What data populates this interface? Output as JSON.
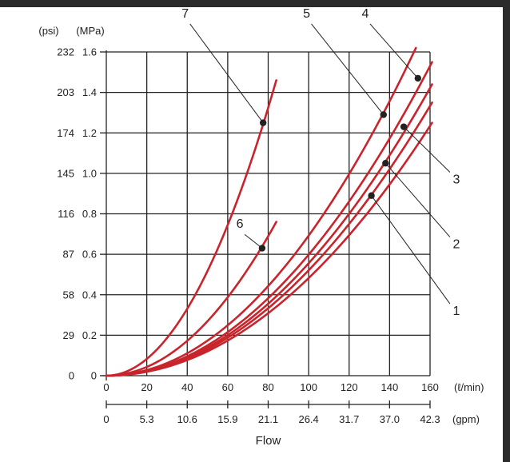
{
  "chart_data": {
    "type": "line",
    "xlabel": "Flow",
    "x_unit_primary": "(ℓ/min)",
    "x_unit_secondary": "(gpm)",
    "y_unit_primary": "(MPa)",
    "y_unit_secondary": "(psi)",
    "xlim": [
      0,
      160
    ],
    "ylim": [
      0,
      1.6
    ],
    "grid": true,
    "x_ticks": [
      0,
      20,
      40,
      60,
      80,
      100,
      120,
      140,
      160
    ],
    "x_ticks_gpm": [
      "0",
      "5.3",
      "10.6",
      "15.9",
      "21.1",
      "26.4",
      "31.7",
      "37.0",
      "42.3"
    ],
    "y_ticks": [
      "0",
      "0.2",
      "0.4",
      "0.6",
      "0.8",
      "1.0",
      "1.2",
      "1.4",
      "1.6"
    ],
    "y_ticks_psi": [
      "0",
      "29",
      "58",
      "87",
      "116",
      "145",
      "174",
      "203",
      "232"
    ],
    "series": [
      {
        "name": "7",
        "x_end": 84,
        "y_end": 1.46,
        "marker": [
          77.5,
          1.25
        ],
        "label_pos": [
          39,
          1.77
        ]
      },
      {
        "name": "6",
        "x_end": 84,
        "y_end": 0.76,
        "marker": [
          77,
          0.63
        ],
        "label_pos": [
          66,
          0.73
        ]
      },
      {
        "name": "5",
        "x_end": 153,
        "y_end": 1.62,
        "marker": [
          137,
          1.29
        ],
        "label_pos": [
          99,
          1.77
        ]
      },
      {
        "name": "4",
        "x_end": 161,
        "y_end": 1.55,
        "marker": [
          154,
          1.47
        ],
        "label_pos": [
          128,
          1.77
        ]
      },
      {
        "name": "3",
        "x_end": 161,
        "y_end": 1.44,
        "marker": [
          147,
          1.23
        ],
        "label_pos": [
          173,
          0.95
        ]
      },
      {
        "name": "2",
        "x_end": 161,
        "y_end": 1.35,
        "marker": [
          138,
          1.05
        ],
        "label_pos": [
          173,
          0.63
        ]
      },
      {
        "name": "1",
        "x_end": 161,
        "y_end": 1.25,
        "marker": [
          131,
          0.89
        ],
        "label_pos": [
          173,
          0.3
        ]
      }
    ],
    "colors": {
      "curve": "#c8242b",
      "grid": "#222222",
      "marker": "#222222"
    }
  }
}
